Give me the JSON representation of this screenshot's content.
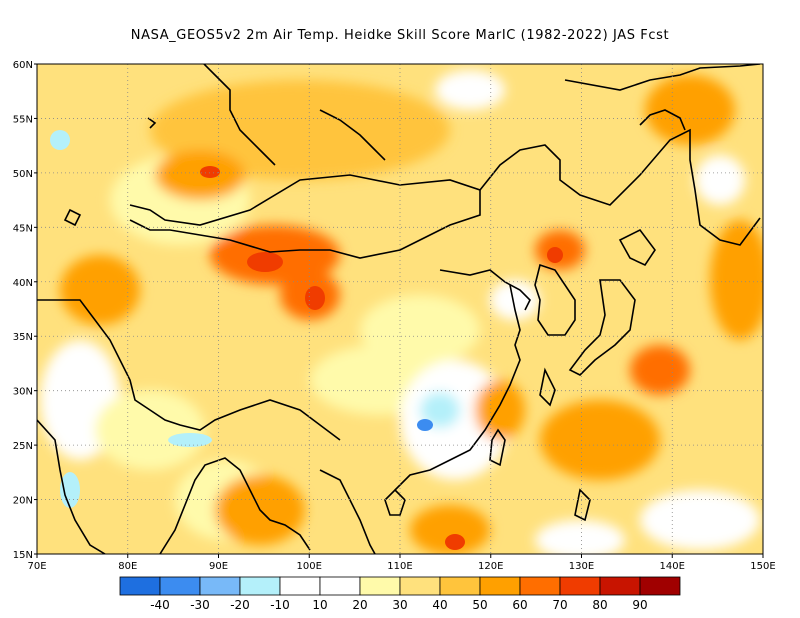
{
  "title": "NASA_GEOS5v2  2m Air Temp. Heidke Skill Score MarIC (1982-2022) JAS Fcst",
  "map": {
    "lon_range": [
      70,
      150
    ],
    "lat_range": [
      15,
      60
    ],
    "lon_ticks": [
      "70E",
      "80E",
      "90E",
      "100E",
      "110E",
      "120E",
      "130E",
      "140E",
      "150E"
    ],
    "lat_ticks": [
      "60N",
      "55N",
      "50N",
      "45N",
      "40N",
      "35N",
      "30N",
      "25N",
      "20N",
      "15N"
    ],
    "grid_style": "dotted"
  },
  "colorbar": {
    "labels": [
      "-40",
      "-30",
      "-20",
      "-10",
      "10",
      "20",
      "30",
      "40",
      "50",
      "60",
      "70",
      "80",
      "90"
    ],
    "colors": [
      "#1e6fe0",
      "#3c8cf0",
      "#78b9f8",
      "#b4f0fa",
      "#ffffff",
      "#fffaaa",
      "#ffe17d",
      "#ffc43c",
      "#ffa000",
      "#ff6e00",
      "#f03c00",
      "#c81400",
      "#a00000"
    ]
  }
}
